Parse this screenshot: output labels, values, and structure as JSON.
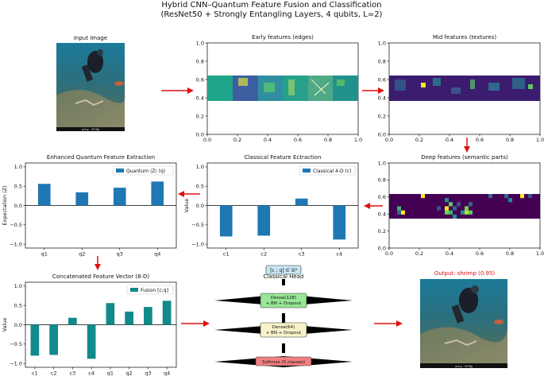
{
  "figure": {
    "title_line1": "Hybrid CNN–Quantum Feature Fusion and Classification",
    "title_line2": "(ResNet50 + Strongly Entangling Layers, 4 qubits, L=2)"
  },
  "panels": {
    "input": {
      "title": "Input Image",
      "caption": "ariny - M78g"
    },
    "early": {
      "title": "Early features (edges)",
      "xticks": [
        "0.0",
        "0.2",
        "0.4",
        "0.6",
        "0.8",
        "1.0"
      ],
      "yticks": [
        "0.0",
        "0.2",
        "0.4",
        "0.6",
        "0.8",
        "1.0"
      ]
    },
    "mid": {
      "title": "Mid features (textures)",
      "xticks": [
        "0.0",
        "0.2",
        "0.4",
        "0.6",
        "0.8",
        "1.0"
      ],
      "yticks": [
        "0.0",
        "0.2",
        "0.4",
        "0.6",
        "0.8",
        "1.0"
      ]
    },
    "deep": {
      "title": "Deep features (semantic parts)",
      "xticks": [
        "0.0",
        "0.2",
        "0.4",
        "0.6",
        "0.8",
        "1.0"
      ],
      "yticks": [
        "0.0",
        "0.2",
        "0.4",
        "0.6",
        "0.8",
        "1.0"
      ]
    },
    "head": {
      "title": "Classical Head",
      "concat_label": "[c ; q] ∈ ℝ⁸",
      "layer1": "Dense(128)\n+ BN + Dropout",
      "layer2": "Dense(64)\n+ BN + Dropout",
      "layer3": "Softmax (5 classes)"
    },
    "output": {
      "title": "Output: shrimp (0.95)",
      "caption": "ariny - M78g"
    }
  },
  "chart_data": [
    {
      "type": "bar",
      "title": "Enhanced Quantum Feature Extraction",
      "ylabel": "Expectation ⟨Z⟩",
      "xlabel": "",
      "categories": [
        "q1",
        "q2",
        "q3",
        "q4"
      ],
      "series": [
        {
          "name": "Quantum ⟨Z⟩ (q)",
          "values": [
            0.56,
            0.34,
            0.46,
            0.62
          ]
        }
      ],
      "ylim": [
        -1.1,
        1.1
      ],
      "yticks": [
        "−1.0",
        "−0.5",
        "0.0",
        "0.5",
        "1.0"
      ],
      "legend": "top-right",
      "color": "#1f77b4"
    },
    {
      "type": "bar",
      "title": "Classical Feature Ectraction",
      "ylabel": "Value",
      "xlabel": "",
      "categories": [
        "c1",
        "c2",
        "c3",
        "c4"
      ],
      "series": [
        {
          "name": "Classical 4-D (c)",
          "values": [
            -0.8,
            -0.78,
            0.18,
            -0.88
          ]
        }
      ],
      "ylim": [
        -1.1,
        1.1
      ],
      "yticks": [
        "−1.0",
        "−0.5",
        "0.0",
        "0.5",
        "1.0"
      ],
      "legend": "top-right",
      "color": "#1f77b4"
    },
    {
      "type": "bar",
      "title": "Concatenated Feature Vector (8-D)",
      "ylabel": "Value",
      "xlabel": "",
      "categories": [
        "c1",
        "c2",
        "c3",
        "c4",
        "q1",
        "q2",
        "q3",
        "q4"
      ],
      "series": [
        {
          "name": "Fusion [c;q]",
          "values": [
            -0.8,
            -0.78,
            0.18,
            -0.88,
            0.56,
            0.34,
            0.46,
            0.62
          ]
        }
      ],
      "ylim": [
        -1.1,
        1.1
      ],
      "yticks": [
        "−1.0",
        "−0.5",
        "0.0",
        "0.5",
        "1.0"
      ],
      "legend": "top-left",
      "color": "#108a8a"
    }
  ],
  "colors": {
    "arrow": "#e01010",
    "teal": "#108a8a",
    "blue": "#1f77b4",
    "output_title": "#e01010"
  }
}
